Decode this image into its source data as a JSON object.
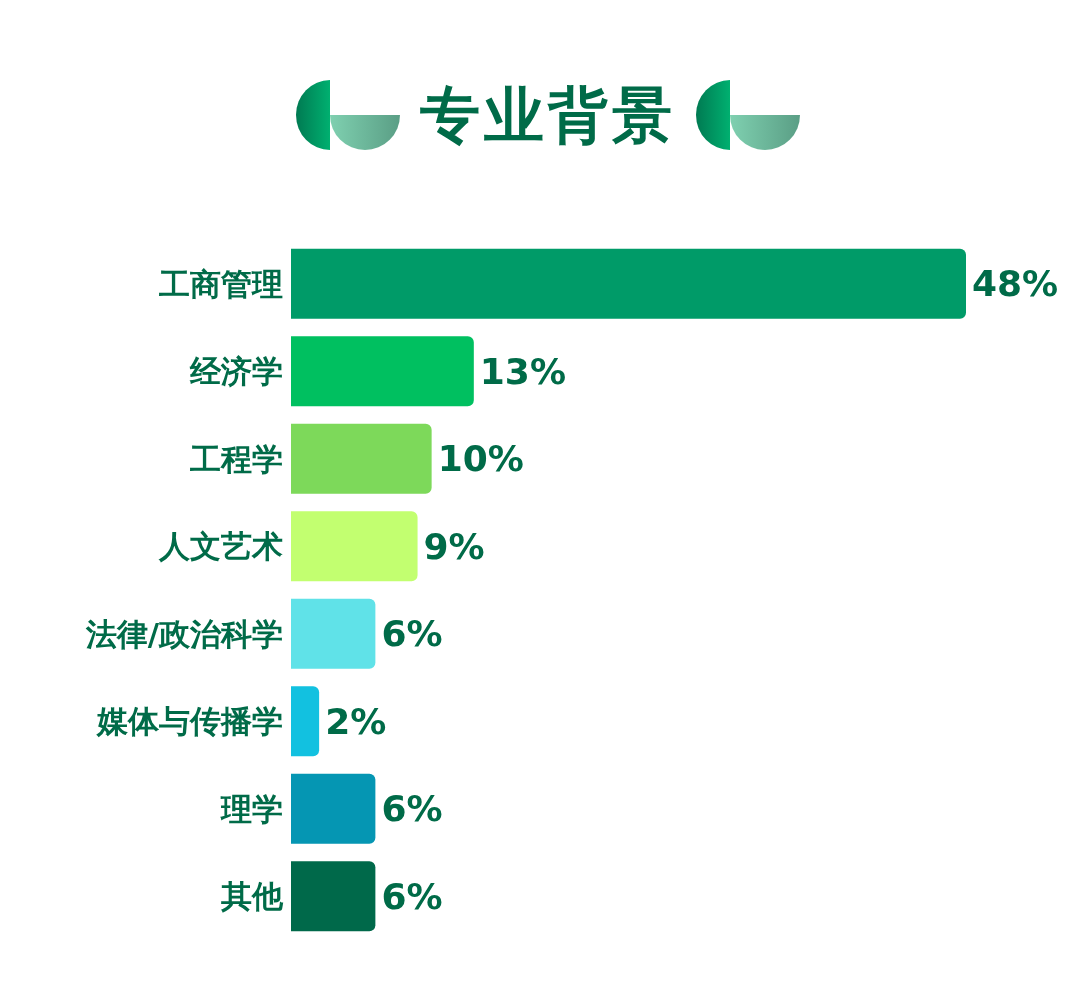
{
  "chart_data": {
    "type": "bar",
    "orientation": "horizontal",
    "title": "专业背景",
    "categories": [
      "工商管理",
      "经济学",
      "工程学",
      "人文艺术",
      "法律/政治科学",
      "媒体与传播学",
      "理学",
      "其他"
    ],
    "values": [
      48,
      13,
      10,
      9,
      6,
      2,
      6,
      6
    ],
    "colors": [
      "#009b68",
      "#00c060",
      "#7dd95a",
      "#c2ff70",
      "#60e2e8",
      "#12c1e0",
      "#0596b3",
      "#00694a"
    ],
    "value_labels": [
      "48%",
      "13%",
      "10%",
      "9%",
      "6%",
      "2%",
      "6%",
      "6%"
    ]
  }
}
